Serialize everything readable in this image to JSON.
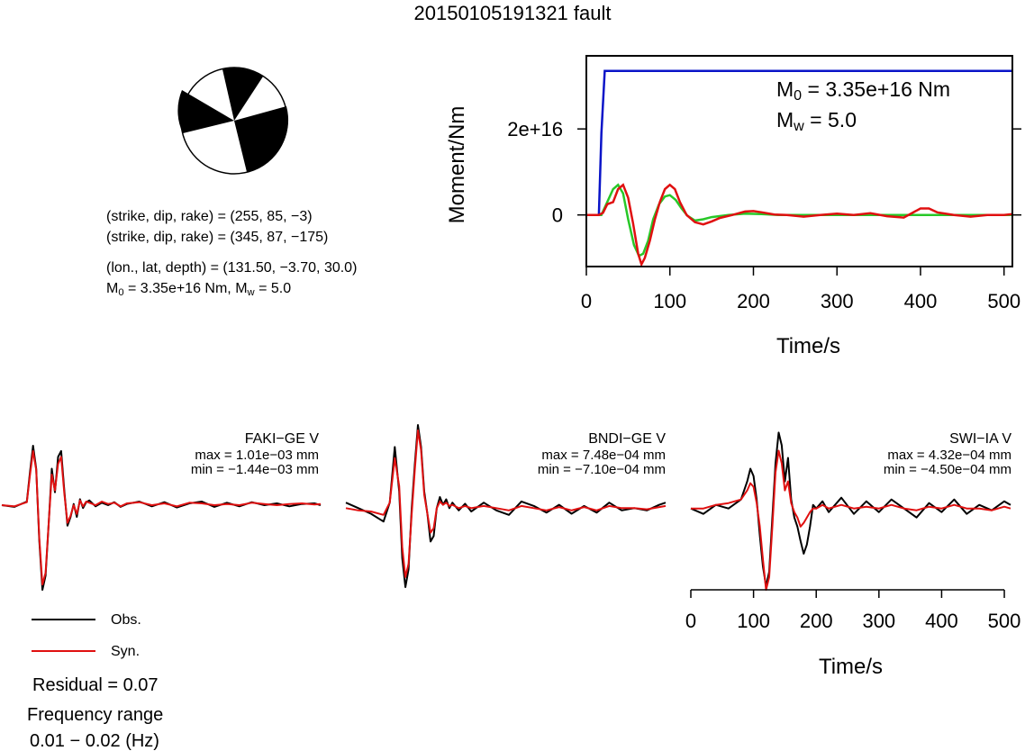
{
  "title": "20150105191321 fault",
  "mechanism": {
    "planes": [
      {
        "prefix": "(strike, dip, rake) = ",
        "values": "(255, 85, −3)"
      },
      {
        "prefix": "(strike, dip, rake) = ",
        "values": "(345, 87, −175)"
      }
    ],
    "location_prefix": "(lon., lat, depth) = ",
    "location_values": "(131.50, −3.70, 30.0)",
    "m0_sym": "M",
    "m0_sub": "0",
    "m0_text": " = 3.35e+16 Nm, ",
    "mw_sym": "M",
    "mw_sub": "w",
    "mw_text": " = 5.0"
  },
  "stations": [
    {
      "label": "FAKI−GE V",
      "max": "max = 1.01e−03 mm",
      "min": "min = −1.44e−03 mm"
    },
    {
      "label": "BNDI−GE V",
      "max": "max = 7.48e−04 mm",
      "min": "min = −7.10e−04 mm"
    },
    {
      "label": "SWI−IA V",
      "max": "max = 4.32e−04 mm",
      "min": "min = −4.50e−04 mm"
    }
  ],
  "legend": {
    "obs": "Obs.",
    "syn": "Syn.",
    "residual": "Residual = 0.07",
    "freq_label": "Frequency range",
    "freq_value": "0.01 − 0.02 (Hz)"
  },
  "colors": {
    "obs": "#000000",
    "syn": "#e01010",
    "moment": "#0a14c8",
    "stf": "#28c828"
  },
  "chart_data": [
    {
      "type": "line",
      "title": "",
      "xlabel": "Time/s",
      "ylabel": "Moment/Nm",
      "xlim": [
        0,
        510
      ],
      "ylim": [
        -1.2e+16,
        3.7e+16
      ],
      "xticks": [
        0,
        100,
        200,
        300,
        400,
        500
      ],
      "xtick_labels": [
        "0",
        "100",
        "200",
        "300",
        "400",
        "500"
      ],
      "yticks": [
        0,
        2e+16
      ],
      "ytick_labels": [
        "0",
        "2e+16"
      ],
      "annotation_m0_sym": "M",
      "annotation_m0_sub": "0",
      "annotation_m0_text": " = 3.35e+16 Nm",
      "annotation_mw_sym": "M",
      "annotation_mw_sub": "w",
      "annotation_mw_text": " = 5.0",
      "series": [
        {
          "color": "#0a14c8",
          "x": [
            0,
            15,
            18,
            22,
            510
          ],
          "y": [
            0,
            0,
            1.9e+16,
            3.35e+16,
            3.35e+16
          ]
        },
        {
          "color": "#28c828",
          "x": [
            0,
            18,
            25,
            32,
            38,
            44,
            50,
            57,
            63,
            68,
            74,
            80,
            87,
            94,
            100,
            107,
            114,
            121,
            130,
            140,
            150,
            170,
            190,
            210,
            230,
            260,
            300,
            360,
            420,
            510
          ],
          "y": [
            0,
            0,
            3000000000000000.0,
            6000000000000000.0,
            7000000000000000.0,
            5000000000000000.0,
            -1000000000000000.0,
            -7000000000000000.0,
            -9500000000000000.0,
            -9000000000000000.0,
            -6000000000000000.0,
            -1000000000000000.0,
            2500000000000000.0,
            4300000000000000.0,
            4600000000000000.0,
            3500000000000000.0,
            1500000000000000.0,
            -200000000000000.0,
            -1300000000000000.0,
            -1000000000000000.0,
            -500000000000000.0,
            0,
            300000000000000.0,
            200000000000000.0,
            0,
            0,
            0,
            0,
            0,
            0
          ]
        },
        {
          "color": "#e01010",
          "x": [
            0,
            15,
            20,
            25,
            32,
            38,
            44,
            50,
            56,
            62,
            66,
            70,
            76,
            82,
            88,
            94,
            100,
            106,
            112,
            120,
            130,
            140,
            150,
            160,
            175,
            190,
            200,
            210,
            225,
            240,
            260,
            280,
            300,
            320,
            340,
            360,
            380,
            400,
            410,
            420,
            440,
            460,
            480,
            500,
            510
          ],
          "y": [
            0,
            0,
            500000000000000.0,
            2500000000000000.0,
            3000000000000000.0,
            6000000000000000.0,
            7000000000000000.0,
            4000000000000000.0,
            -2000000000000000.0,
            -9000000000000000.0,
            -1.15e+16,
            -1e+16,
            -6000000000000000.0,
            -1000000000000000.0,
            3000000000000000.0,
            6000000000000000.0,
            7000000000000000.0,
            6000000000000000.0,
            3000000000000000.0,
            0,
            -1700000000000000.0,
            -2200000000000000.0,
            -1500000000000000.0,
            -700000000000000.0,
            0,
            800000000000000.0,
            900000000000000.0,
            600000000000000.0,
            100000000000000.0,
            0,
            -400000000000000.0,
            0,
            300000000000000.0,
            0,
            400000000000000.0,
            -300000000000000.0,
            -600000000000000.0,
            1500000000000000.0,
            1500000000000000.0,
            600000000000000.0,
            0,
            -400000000000000.0,
            0,
            0,
            200000000000000.0
          ]
        }
      ]
    },
    {
      "type": "line",
      "title": "FAKI−GE V",
      "xlim": [
        0,
        510
      ],
      "ylim": [
        -1.44,
        1.01
      ],
      "series": [
        {
          "name": "Obs.",
          "color": "#000000",
          "x": [
            0,
            20,
            40,
            45,
            50,
            55,
            60,
            65,
            70,
            75,
            80,
            85,
            90,
            95,
            100,
            105,
            110,
            115,
            120,
            125,
            130,
            135,
            140,
            150,
            160,
            170,
            180,
            190,
            200,
            220,
            240,
            260,
            280,
            300,
            320,
            340,
            360,
            380,
            400,
            420,
            440,
            460,
            480,
            500,
            510
          ],
          "y": [
            0,
            -0.03,
            0.06,
            0.55,
            1.01,
            0.62,
            -0.6,
            -1.44,
            -1.2,
            -0.3,
            0.62,
            0.22,
            0.82,
            0.92,
            0.25,
            -0.35,
            -0.2,
            0.02,
            -0.2,
            0.1,
            -0.05,
            0.05,
            0.08,
            -0.02,
            0.04,
            0.0,
            0.05,
            -0.03,
            0.02,
            0.06,
            -0.02,
            0.05,
            -0.04,
            0.03,
            0.06,
            -0.03,
            0.04,
            -0.02,
            0.05,
            0.0,
            0.03,
            -0.02,
            0.02,
            0.03,
            0.0
          ]
        },
        {
          "name": "Syn.",
          "color": "#e01010",
          "x": [
            0,
            20,
            40,
            45,
            50,
            55,
            60,
            65,
            70,
            75,
            80,
            85,
            90,
            95,
            100,
            105,
            110,
            115,
            120,
            125,
            130,
            135,
            140,
            150,
            160,
            170,
            180,
            190,
            200,
            220,
            240,
            260,
            280,
            300,
            320,
            340,
            360,
            380,
            400,
            420,
            440,
            460,
            480,
            500,
            510
          ],
          "y": [
            0,
            -0.02,
            0.05,
            0.5,
            0.92,
            0.6,
            -0.55,
            -1.35,
            -1.15,
            -0.3,
            0.52,
            0.25,
            0.7,
            0.82,
            0.2,
            -0.3,
            -0.18,
            0.0,
            -0.15,
            0.08,
            -0.02,
            0.06,
            0.04,
            0.0,
            0.06,
            0.02,
            0.04,
            -0.02,
            0.03,
            0.05,
            0.0,
            0.03,
            -0.02,
            0.04,
            0.03,
            0.0,
            0.02,
            0.0,
            0.04,
            0.02,
            0.0,
            0.02,
            0.03,
            0.01,
            0.02
          ]
        }
      ]
    },
    {
      "type": "line",
      "title": "BNDI−GE V",
      "xlim": [
        0,
        510
      ],
      "ylim": [
        -0.71,
        0.748
      ],
      "series": [
        {
          "name": "Obs.",
          "color": "#000000",
          "x": [
            0,
            20,
            40,
            60,
            70,
            78,
            85,
            90,
            95,
            100,
            105,
            110,
            115,
            120,
            125,
            130,
            135,
            140,
            145,
            150,
            155,
            160,
            165,
            170,
            180,
            190,
            200,
            220,
            240,
            260,
            280,
            300,
            320,
            340,
            360,
            380,
            400,
            420,
            440,
            460,
            480,
            500,
            510
          ],
          "y": [
            0.05,
            0.0,
            -0.05,
            -0.12,
            0.05,
            0.55,
            0.15,
            -0.45,
            -0.71,
            -0.55,
            0.0,
            0.4,
            0.748,
            0.55,
            0.15,
            -0.05,
            -0.3,
            -0.25,
            0.0,
            0.1,
            0.03,
            0.08,
            0.0,
            0.05,
            -0.02,
            0.04,
            -0.03,
            0.05,
            -0.02,
            -0.06,
            0.06,
            0.02,
            -0.04,
            0.03,
            -0.05,
            0.02,
            -0.04,
            0.05,
            -0.02,
            0.0,
            -0.02,
            0.03,
            0.05
          ]
        },
        {
          "name": "Syn.",
          "color": "#e01010",
          "x": [
            0,
            20,
            40,
            60,
            70,
            78,
            85,
            90,
            95,
            100,
            105,
            110,
            115,
            120,
            125,
            130,
            135,
            140,
            145,
            150,
            155,
            160,
            165,
            170,
            180,
            190,
            200,
            220,
            240,
            260,
            280,
            300,
            320,
            340,
            360,
            380,
            400,
            420,
            440,
            460,
            480,
            500,
            510
          ],
          "y": [
            0,
            -0.02,
            -0.03,
            -0.06,
            0.05,
            0.45,
            0.2,
            -0.35,
            -0.62,
            -0.5,
            -0.05,
            0.35,
            0.7,
            0.52,
            0.12,
            -0.05,
            -0.22,
            -0.18,
            0.0,
            0.06,
            0.03,
            0.05,
            0.02,
            0.03,
            0.0,
            0.02,
            0.0,
            0.02,
            0.0,
            -0.02,
            0.02,
            0.0,
            -0.02,
            0.01,
            -0.02,
            0.01,
            -0.02,
            0.02,
            0.0,
            0.0,
            -0.01,
            0.01,
            0.02
          ]
        }
      ]
    },
    {
      "type": "line",
      "title": "SWI−IA V",
      "xlabel": "Time/s",
      "xlim": [
        0,
        510
      ],
      "ylim": [
        -0.45,
        0.432
      ],
      "xticks": [
        0,
        100,
        200,
        300,
        400,
        500
      ],
      "xtick_labels": [
        "0",
        "100",
        "200",
        "300",
        "400",
        "500"
      ],
      "series": [
        {
          "name": "Obs.",
          "color": "#000000",
          "x": [
            0,
            20,
            40,
            60,
            80,
            90,
            95,
            100,
            105,
            110,
            115,
            120,
            125,
            130,
            135,
            140,
            145,
            150,
            155,
            160,
            165,
            170,
            175,
            180,
            185,
            190,
            195,
            200,
            210,
            220,
            240,
            260,
            280,
            300,
            320,
            340,
            360,
            380,
            400,
            420,
            440,
            460,
            480,
            500,
            510
          ],
          "y": [
            0,
            -0.03,
            0.02,
            0.0,
            0.05,
            0.15,
            0.22,
            0.18,
            0.05,
            -0.15,
            -0.32,
            -0.43,
            -0.35,
            -0.05,
            0.25,
            0.42,
            0.35,
            0.15,
            0.28,
            0.05,
            -0.05,
            -0.1,
            -0.18,
            -0.25,
            -0.2,
            -0.1,
            0.02,
            0.0,
            0.04,
            -0.02,
            0.06,
            -0.03,
            0.04,
            -0.02,
            0.05,
            0.0,
            -0.05,
            0.03,
            -0.02,
            0.05,
            -0.03,
            0.02,
            -0.01,
            0.04,
            0.02
          ]
        },
        {
          "name": "Syn.",
          "color": "#e01010",
          "x": [
            0,
            20,
            40,
            60,
            80,
            90,
            95,
            100,
            105,
            110,
            115,
            120,
            125,
            130,
            135,
            140,
            145,
            150,
            155,
            160,
            165,
            170,
            175,
            180,
            185,
            190,
            195,
            200,
            210,
            220,
            240,
            260,
            280,
            300,
            320,
            340,
            360,
            380,
            400,
            420,
            440,
            460,
            480,
            500,
            510
          ],
          "y": [
            0,
            0.0,
            0.02,
            0.03,
            0.05,
            0.1,
            0.14,
            0.12,
            0.03,
            -0.1,
            -0.28,
            -0.45,
            -0.38,
            -0.1,
            0.2,
            0.32,
            0.25,
            0.1,
            0.15,
            0.03,
            -0.02,
            -0.05,
            -0.1,
            -0.08,
            -0.05,
            -0.02,
            0.0,
            0.0,
            0.02,
            0.0,
            0.02,
            0.0,
            0.01,
            0.0,
            0.02,
            0.0,
            -0.01,
            0.01,
            0.0,
            0.02,
            0.0,
            0.0,
            -0.01,
            0.01,
            0.0
          ]
        }
      ]
    }
  ]
}
